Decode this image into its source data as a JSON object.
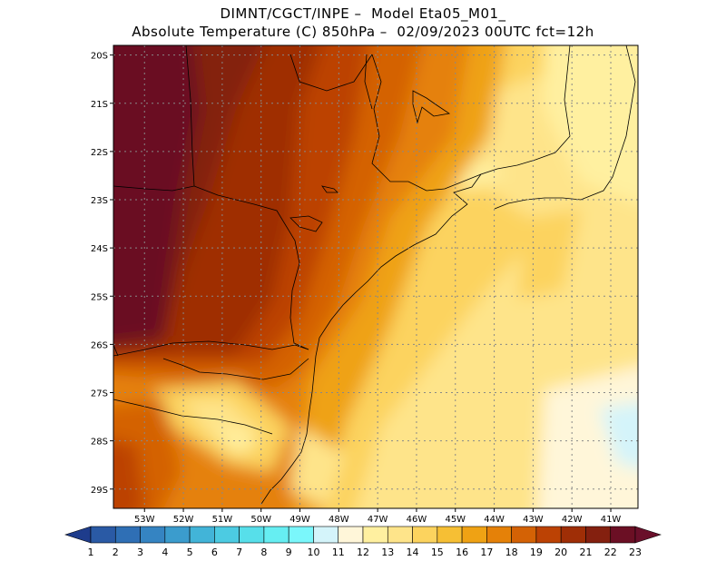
{
  "title": {
    "line1": "DIMNT/CGCT/INPE –  Model Eta05_M01_",
    "line2": "Absolute Temperature (C) 850hPa –  02/09/2023 00UTC fct=12h"
  },
  "map": {
    "lat_labels": [
      "20S",
      "21S",
      "22S",
      "23S",
      "24S",
      "25S",
      "26S",
      "27S",
      "28S",
      "29S"
    ],
    "lon_labels": [
      "53W",
      "52W",
      "51W",
      "50W",
      "49W",
      "48W",
      "47W",
      "46W",
      "45W",
      "44W",
      "43W",
      "42W",
      "41W"
    ],
    "lat_range": [
      -29.4,
      -19.8
    ],
    "lon_range": [
      -53.8,
      -40.3
    ],
    "grid": "dotted"
  },
  "colorbar": {
    "labels": [
      "1",
      "2",
      "3",
      "4",
      "5",
      "6",
      "7",
      "8",
      "9",
      "10",
      "11",
      "12",
      "13",
      "14",
      "15",
      "16",
      "17",
      "18",
      "19",
      "20",
      "21",
      "22",
      "23"
    ],
    "colors": [
      "#1e3c8c",
      "#2a5aa5",
      "#2f6fb5",
      "#3584c2",
      "#3b9ccd",
      "#42b4d8",
      "#4ccbe2",
      "#57dfea",
      "#66eef2",
      "#7af7fb",
      "#d4f4fa",
      "#fff6d9",
      "#fff0a0",
      "#fee48a",
      "#fcd35e",
      "#f6bf34",
      "#efa214",
      "#e58108",
      "#d46205",
      "#bc4204",
      "#9f2e06",
      "#84200f",
      "#6b0f24",
      "#6a0f2a"
    ]
  }
}
